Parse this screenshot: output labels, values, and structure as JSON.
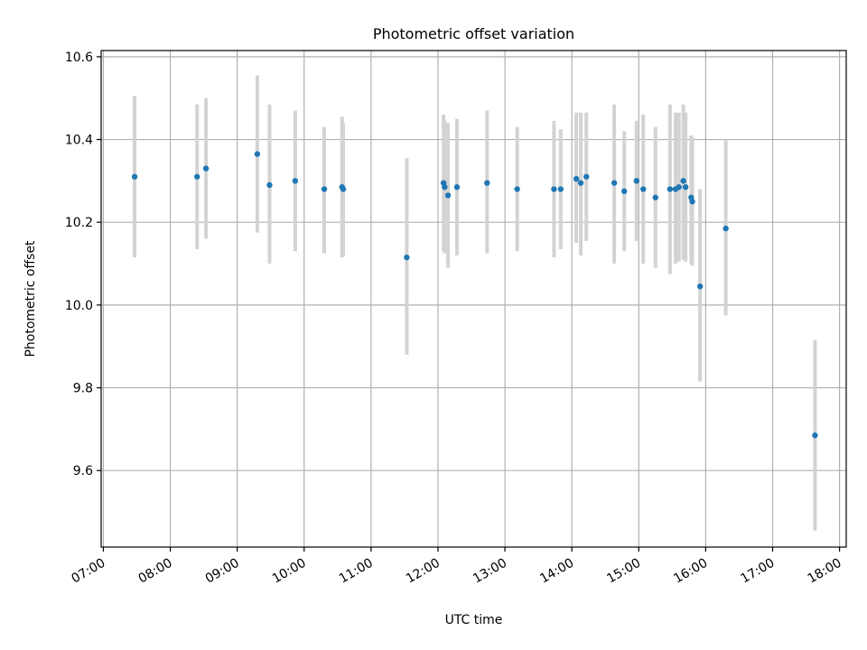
{
  "chart_data": {
    "type": "scatter",
    "title": "Photometric offset variation",
    "xlabel": "UTC time",
    "ylabel": "Photometric offset",
    "grid": true,
    "xlim": [
      "06:58",
      "18:06"
    ],
    "ylim": [
      9.415,
      10.615
    ],
    "x_ticks": [
      "07:00",
      "08:00",
      "09:00",
      "10:00",
      "11:00",
      "12:00",
      "13:00",
      "14:00",
      "15:00",
      "16:00",
      "17:00",
      "18:00"
    ],
    "y_ticks": [
      "9.6",
      "9.8",
      "10.0",
      "10.2",
      "10.4",
      "10.6"
    ],
    "colors": {
      "points": "#1f77b4",
      "error_bars": "#d3d3d3",
      "grid": "#b0b0b0"
    },
    "series": [
      {
        "points": [
          {
            "x": "07:28",
            "y": 10.31,
            "lo": 10.115,
            "hi": 10.505
          },
          {
            "x": "08:24",
            "y": 10.31,
            "lo": 10.135,
            "hi": 10.485
          },
          {
            "x": "08:32",
            "y": 10.33,
            "lo": 10.16,
            "hi": 10.5
          },
          {
            "x": "09:18",
            "y": 10.365,
            "lo": 10.175,
            "hi": 10.555
          },
          {
            "x": "09:29",
            "y": 10.29,
            "lo": 10.1,
            "hi": 10.485
          },
          {
            "x": "09:52",
            "y": 10.3,
            "lo": 10.13,
            "hi": 10.47
          },
          {
            "x": "10:18",
            "y": 10.28,
            "lo": 10.125,
            "hi": 10.43
          },
          {
            "x": "10:34",
            "y": 10.285,
            "lo": 10.115,
            "hi": 10.455
          },
          {
            "x": "10:35",
            "y": 10.28,
            "lo": 10.12,
            "hi": 10.44
          },
          {
            "x": "11:32",
            "y": 10.115,
            "lo": 9.88,
            "hi": 10.355
          },
          {
            "x": "12:05",
            "y": 10.295,
            "lo": 10.13,
            "hi": 10.46
          },
          {
            "x": "12:06",
            "y": 10.285,
            "lo": 10.125,
            "hi": 10.445
          },
          {
            "x": "12:09",
            "y": 10.265,
            "lo": 10.09,
            "hi": 10.44
          },
          {
            "x": "12:17",
            "y": 10.285,
            "lo": 10.12,
            "hi": 10.45
          },
          {
            "x": "12:44",
            "y": 10.295,
            "lo": 10.125,
            "hi": 10.47
          },
          {
            "x": "13:11",
            "y": 10.28,
            "lo": 10.13,
            "hi": 10.43
          },
          {
            "x": "13:44",
            "y": 10.28,
            "lo": 10.115,
            "hi": 10.445
          },
          {
            "x": "13:50",
            "y": 10.28,
            "lo": 10.135,
            "hi": 10.425
          },
          {
            "x": "14:04",
            "y": 10.305,
            "lo": 10.15,
            "hi": 10.465
          },
          {
            "x": "14:08",
            "y": 10.295,
            "lo": 10.12,
            "hi": 10.465
          },
          {
            "x": "14:13",
            "y": 10.31,
            "lo": 10.155,
            "hi": 10.465
          },
          {
            "x": "14:38",
            "y": 10.295,
            "lo": 10.1,
            "hi": 10.485
          },
          {
            "x": "14:47",
            "y": 10.275,
            "lo": 10.13,
            "hi": 10.42
          },
          {
            "x": "14:58",
            "y": 10.3,
            "lo": 10.155,
            "hi": 10.445
          },
          {
            "x": "15:04",
            "y": 10.28,
            "lo": 10.1,
            "hi": 10.46
          },
          {
            "x": "15:15",
            "y": 10.26,
            "lo": 10.09,
            "hi": 10.43
          },
          {
            "x": "15:28",
            "y": 10.28,
            "lo": 10.075,
            "hi": 10.485
          },
          {
            "x": "15:33",
            "y": 10.28,
            "lo": 10.1,
            "hi": 10.465
          },
          {
            "x": "15:36",
            "y": 10.285,
            "lo": 10.105,
            "hi": 10.465
          },
          {
            "x": "15:40",
            "y": 10.3,
            "lo": 10.11,
            "hi": 10.485
          },
          {
            "x": "15:42",
            "y": 10.285,
            "lo": 10.105,
            "hi": 10.465
          },
          {
            "x": "15:47",
            "y": 10.26,
            "lo": 10.1,
            "hi": 10.41
          },
          {
            "x": "15:48",
            "y": 10.25,
            "lo": 10.095,
            "hi": 10.405
          },
          {
            "x": "15:55",
            "y": 10.045,
            "lo": 9.815,
            "hi": 10.28
          },
          {
            "x": "16:18",
            "y": 10.185,
            "lo": 9.975,
            "hi": 10.4
          },
          {
            "x": "17:38",
            "y": 9.685,
            "lo": 9.455,
            "hi": 9.915
          }
        ]
      }
    ]
  }
}
